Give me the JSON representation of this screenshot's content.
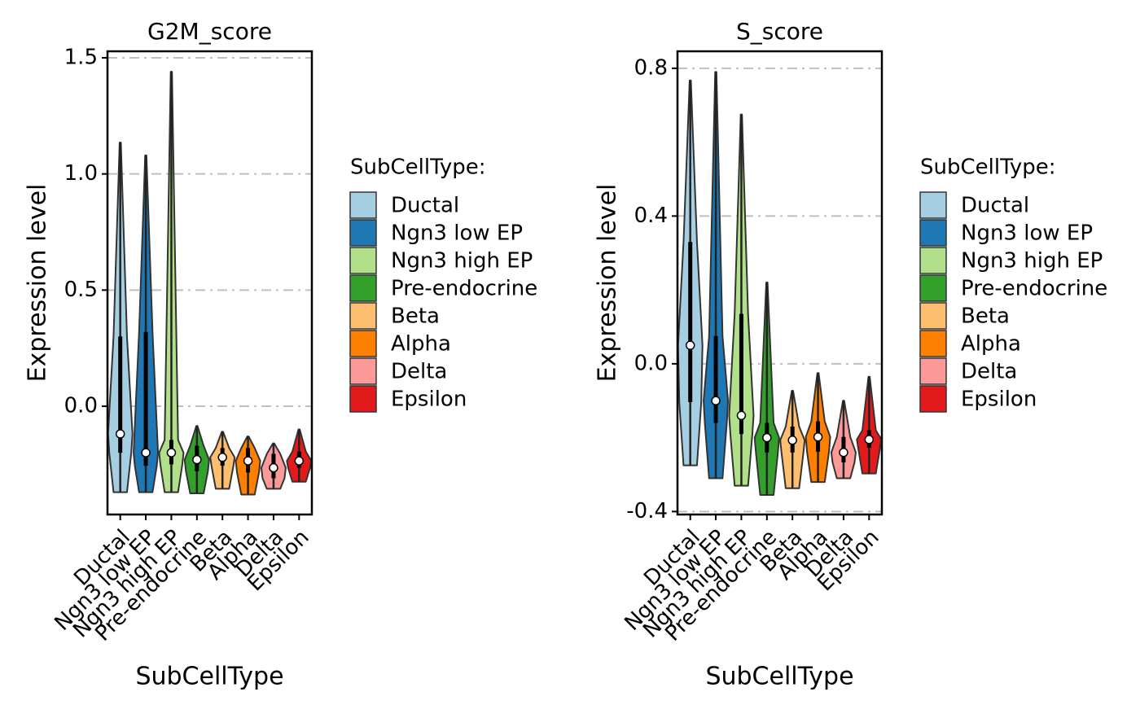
{
  "chart_data": [
    {
      "type": "violin",
      "title": "G2M_score",
      "x_label": "SubCellType",
      "y_label": "Expression level",
      "legend_title": "SubCellType:",
      "categories": [
        "Ductal",
        "Ngn3 low EP",
        "Ngn3 high EP",
        "Pre-endocrine",
        "Beta",
        "Alpha",
        "Delta",
        "Epsilon"
      ],
      "colors": [
        "#a6cee3",
        "#1f78b4",
        "#b2df8a",
        "#33a02c",
        "#fdbf6f",
        "#ff7f00",
        "#fb9a99",
        "#e31a1c"
      ],
      "min": [
        -0.37,
        -0.37,
        -0.37,
        -0.375,
        -0.355,
        -0.38,
        -0.355,
        -0.325
      ],
      "q1": [
        -0.2,
        -0.256,
        -0.25,
        -0.28,
        -0.256,
        -0.285,
        -0.31,
        -0.265
      ],
      "median": [
        -0.119,
        -0.2,
        -0.2,
        -0.23,
        -0.22,
        -0.235,
        -0.265,
        -0.235
      ],
      "q3": [
        0.3,
        0.32,
        -0.145,
        -0.17,
        -0.18,
        -0.18,
        -0.205,
        -0.195
      ],
      "max": [
        1.135,
        1.08,
        1.44,
        -0.085,
        -0.11,
        -0.13,
        -0.16,
        -0.1
      ],
      "ylim": [
        -0.466,
        1.528
      ],
      "yticks": [
        {
          "value": 0,
          "label": "0.0"
        },
        0.5,
        {
          "value": 1,
          "label": "1.0"
        },
        1.5
      ],
      "grid": true
    },
    {
      "type": "violin",
      "title": "S_score",
      "x_label": "SubCellType",
      "y_label": "Expression level",
      "legend_title": "SubCellType:",
      "categories": [
        "Ductal",
        "Ngn3 low EP",
        "Ngn3 high EP",
        "Pre-endocrine",
        "Beta",
        "Alpha",
        "Delta",
        "Epsilon"
      ],
      "colors": [
        "#a6cee3",
        "#1f78b4",
        "#b2df8a",
        "#33a02c",
        "#fdbf6f",
        "#ff7f00",
        "#fb9a99",
        "#e31a1c"
      ],
      "min": [
        -0.275,
        -0.31,
        -0.33,
        -0.355,
        -0.337,
        -0.32,
        -0.31,
        -0.297
      ],
      "q1": [
        -0.104,
        -0.16,
        -0.19,
        -0.24,
        -0.24,
        -0.238,
        -0.267,
        -0.227
      ],
      "median": [
        0.05,
        -0.1,
        -0.14,
        -0.2,
        -0.207,
        -0.198,
        -0.24,
        -0.205
      ],
      "q3": [
        0.33,
        0.075,
        0.135,
        -0.16,
        -0.17,
        -0.156,
        -0.198,
        -0.18
      ],
      "max": [
        0.767,
        0.79,
        0.675,
        0.22,
        -0.073,
        -0.025,
        -0.1,
        -0.035
      ],
      "ylim": [
        -0.408,
        0.846
      ],
      "yticks": [
        {
          "value": -0.4,
          "label": "-0.4"
        },
        {
          "value": 0,
          "label": "0.0"
        },
        0.4,
        0.8
      ],
      "grid": true
    }
  ]
}
